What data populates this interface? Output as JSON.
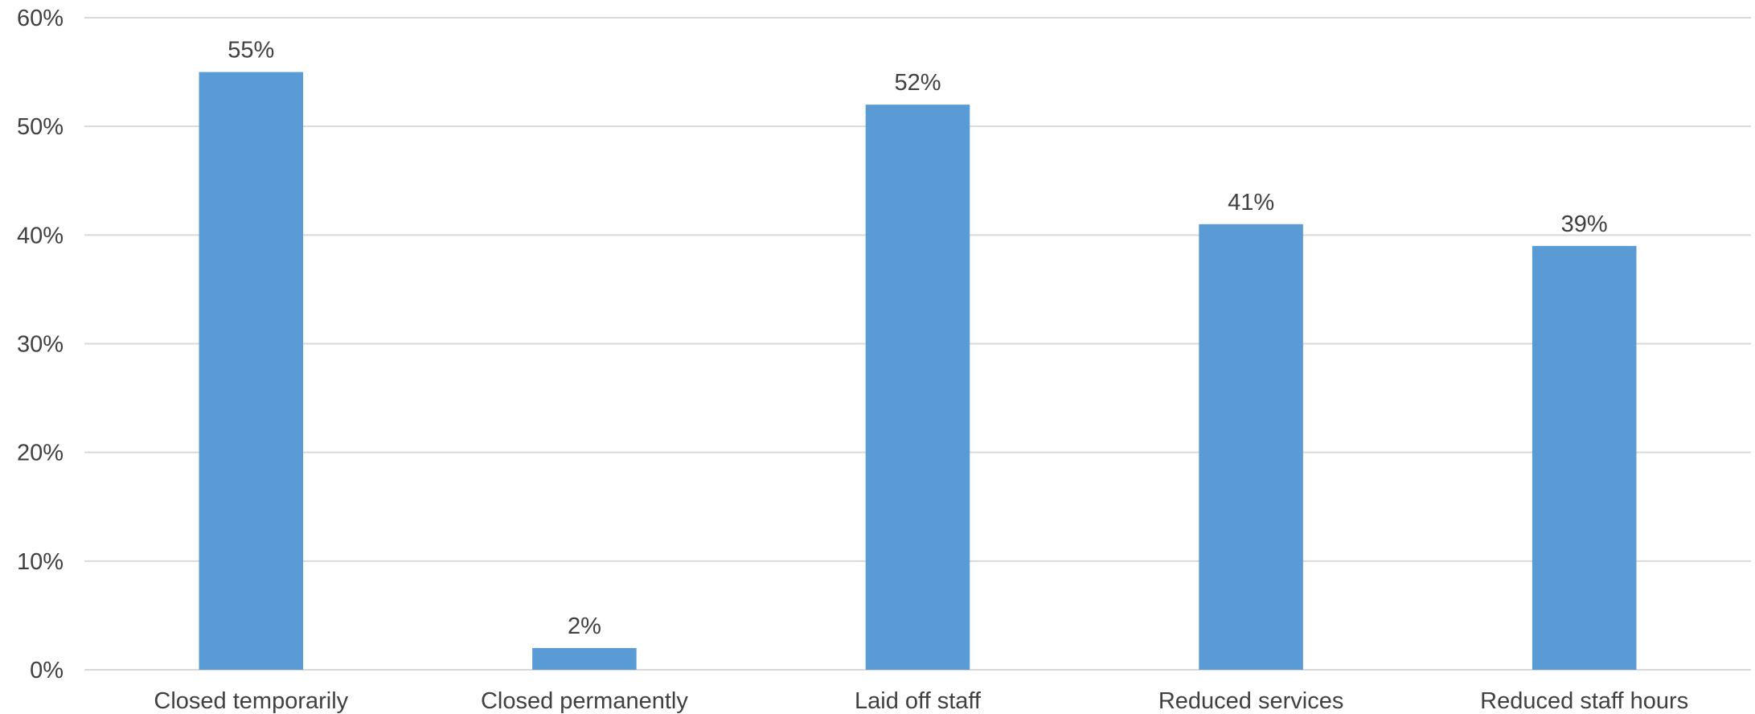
{
  "chart_data": {
    "type": "bar",
    "title": "",
    "xlabel": "",
    "ylabel": "",
    "categories": [
      "Closed temporarily",
      "Closed permanently",
      "Laid off staff",
      "Reduced services",
      "Reduced staff hours"
    ],
    "values": [
      55,
      2,
      52,
      41,
      39
    ],
    "data_labels": [
      "55%",
      "2%",
      "52%",
      "41%",
      "39%"
    ],
    "ylim": [
      0,
      60
    ],
    "y_ticks": [
      0,
      10,
      20,
      30,
      40,
      50,
      60
    ],
    "y_tick_labels": [
      "0%",
      "10%",
      "20%",
      "30%",
      "40%",
      "50%",
      "60%"
    ],
    "grid": true,
    "legend": "none",
    "colors": {
      "bar": "#5b9bd5",
      "grid": "#d9d9d9",
      "text": "#404040"
    }
  }
}
